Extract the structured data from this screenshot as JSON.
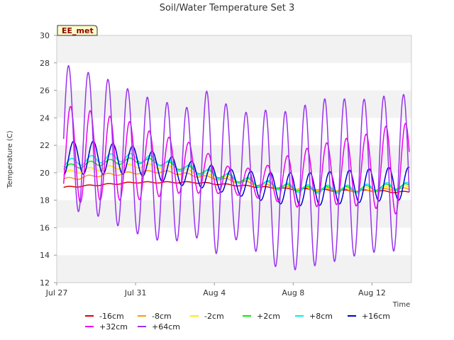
{
  "chart_data": {
    "type": "line",
    "title": "Soil/Water Temperature Set 3",
    "xlabel": "Time",
    "ylabel": "Temperature (C)",
    "site_badge": "EE_met",
    "x_domain": [
      "2023-07-27",
      "2023-08-14"
    ],
    "ylim": [
      12,
      30
    ],
    "yticks": [
      12,
      14,
      16,
      18,
      20,
      22,
      24,
      26,
      28,
      30
    ],
    "xticks": [
      {
        "label": "Jul 27",
        "date": "2023-07-27"
      },
      {
        "label": "Jul 31",
        "date": "2023-07-31"
      },
      {
        "label": "Aug 4",
        "date": "2023-08-04"
      },
      {
        "label": "Aug 8",
        "date": "2023-08-08"
      },
      {
        "label": "Aug 12",
        "date": "2023-08-12"
      }
    ],
    "grid": "horizontal bands",
    "legend_position": "bottom",
    "x_dates": [
      "2023-07-27",
      "2023-07-28",
      "2023-07-29",
      "2023-07-30",
      "2023-07-31",
      "2023-08-01",
      "2023-08-02",
      "2023-08-03",
      "2023-08-04",
      "2023-08-05",
      "2023-08-06",
      "2023-08-07",
      "2023-08-08",
      "2023-08-09",
      "2023-08-10",
      "2023-08-11",
      "2023-08-12",
      "2023-08-13"
    ],
    "series": [
      {
        "name": "-16cm",
        "color": "#dd0000",
        "phase": 0.0,
        "base": [
          18.9,
          19.0,
          19.1,
          19.2,
          19.3,
          19.3,
          19.3,
          19.3,
          19.2,
          19.1,
          19.0,
          18.9,
          18.8,
          18.8,
          18.7,
          18.7,
          18.7,
          18.6
        ],
        "amplitude": [
          0.05,
          0.05,
          0.05,
          0.05,
          0.05,
          0.05,
          0.05,
          0.05,
          0.05,
          0.05,
          0.05,
          0.05,
          0.05,
          0.05,
          0.05,
          0.05,
          0.05,
          0.05
        ]
      },
      {
        "name": "-8cm",
        "color": "#ff9900",
        "phase": 0.0,
        "base": [
          19.5,
          19.6,
          19.8,
          19.9,
          20.0,
          20.1,
          20.0,
          19.8,
          19.6,
          19.4,
          19.2,
          19.0,
          18.9,
          18.8,
          18.8,
          18.7,
          18.7,
          18.8
        ],
        "amplitude": [
          0.1,
          0.1,
          0.1,
          0.1,
          0.1,
          0.1,
          0.1,
          0.1,
          0.1,
          0.1,
          0.1,
          0.1,
          0.1,
          0.1,
          0.1,
          0.1,
          0.1,
          0.1
        ]
      },
      {
        "name": "-2cm",
        "color": "#ffee00",
        "phase": 0.05,
        "base": [
          19.9,
          20.1,
          20.3,
          20.4,
          20.5,
          20.5,
          20.3,
          20.0,
          19.7,
          19.5,
          19.2,
          19.0,
          18.9,
          18.8,
          18.8,
          18.8,
          18.8,
          18.9
        ],
        "amplitude": [
          0.15,
          0.15,
          0.15,
          0.15,
          0.15,
          0.15,
          0.15,
          0.15,
          0.15,
          0.15,
          0.15,
          0.15,
          0.15,
          0.15,
          0.15,
          0.15,
          0.15,
          0.15
        ]
      },
      {
        "name": "+2cm",
        "color": "#00ee00",
        "phase": 0.1,
        "base": [
          20.3,
          20.5,
          20.7,
          20.8,
          20.9,
          20.8,
          20.5,
          20.2,
          19.9,
          19.6,
          19.3,
          19.1,
          18.9,
          18.8,
          18.8,
          18.8,
          18.9,
          19.0
        ],
        "amplitude": [
          0.2,
          0.2,
          0.2,
          0.2,
          0.2,
          0.2,
          0.2,
          0.2,
          0.2,
          0.2,
          0.2,
          0.2,
          0.2,
          0.2,
          0.2,
          0.2,
          0.2,
          0.2
        ]
      },
      {
        "name": "+8cm",
        "color": "#00eeee",
        "phase": 0.15,
        "base": [
          20.6,
          20.8,
          21.0,
          21.1,
          21.1,
          20.9,
          20.5,
          20.2,
          19.9,
          19.6,
          19.3,
          19.1,
          18.9,
          18.8,
          18.8,
          18.8,
          18.9,
          19.0
        ],
        "amplitude": [
          0.3,
          0.3,
          0.3,
          0.3,
          0.3,
          0.3,
          0.3,
          0.3,
          0.3,
          0.3,
          0.3,
          0.3,
          0.3,
          0.3,
          0.3,
          0.3,
          0.3,
          0.3
        ]
      },
      {
        "name": "+16cm",
        "color": "#0000cc",
        "phase": 0.25,
        "base": [
          21.0,
          21.1,
          21.1,
          21.0,
          20.9,
          20.5,
          20.1,
          19.9,
          19.6,
          19.3,
          19.1,
          18.9,
          18.8,
          18.8,
          18.9,
          19.0,
          19.1,
          19.2
        ],
        "amplitude": [
          1.2,
          1.2,
          1.2,
          1.1,
          1.0,
          1.0,
          1.0,
          0.9,
          0.9,
          0.9,
          1.0,
          1.1,
          1.2,
          1.2,
          1.2,
          1.2,
          1.2,
          1.2
        ]
      },
      {
        "name": "+32cm",
        "color": "#ee00ee",
        "phase": 0.1,
        "base": [
          21.3,
          21.3,
          21.2,
          21.0,
          20.8,
          20.5,
          20.5,
          20.3,
          19.8,
          19.3,
          19.3,
          19.3,
          19.5,
          19.7,
          20.0,
          20.1,
          20.2,
          20.3
        ],
        "amplitude": [
          3.6,
          3.5,
          3.2,
          3.0,
          2.8,
          2.3,
          2.0,
          1.8,
          1.3,
          0.9,
          1.1,
          1.3,
          2.0,
          2.2,
          2.3,
          2.5,
          2.7,
          3.3
        ]
      },
      {
        "name": "+64cm",
        "color": "#9933ee",
        "phase": 0.0,
        "base": [
          22.5,
          22.4,
          22.0,
          21.4,
          20.7,
          20.2,
          20.0,
          20.0,
          20.4,
          19.5,
          19.6,
          18.8,
          18.7,
          19.2,
          19.5,
          19.6,
          19.8,
          20.0
        ],
        "amplitude": [
          5.6,
          5.2,
          5.1,
          5.2,
          5.1,
          5.1,
          5.0,
          4.6,
          6.4,
          4.3,
          5.2,
          5.6,
          5.8,
          6.0,
          6.0,
          5.7,
          5.6,
          5.7
        ]
      }
    ]
  }
}
